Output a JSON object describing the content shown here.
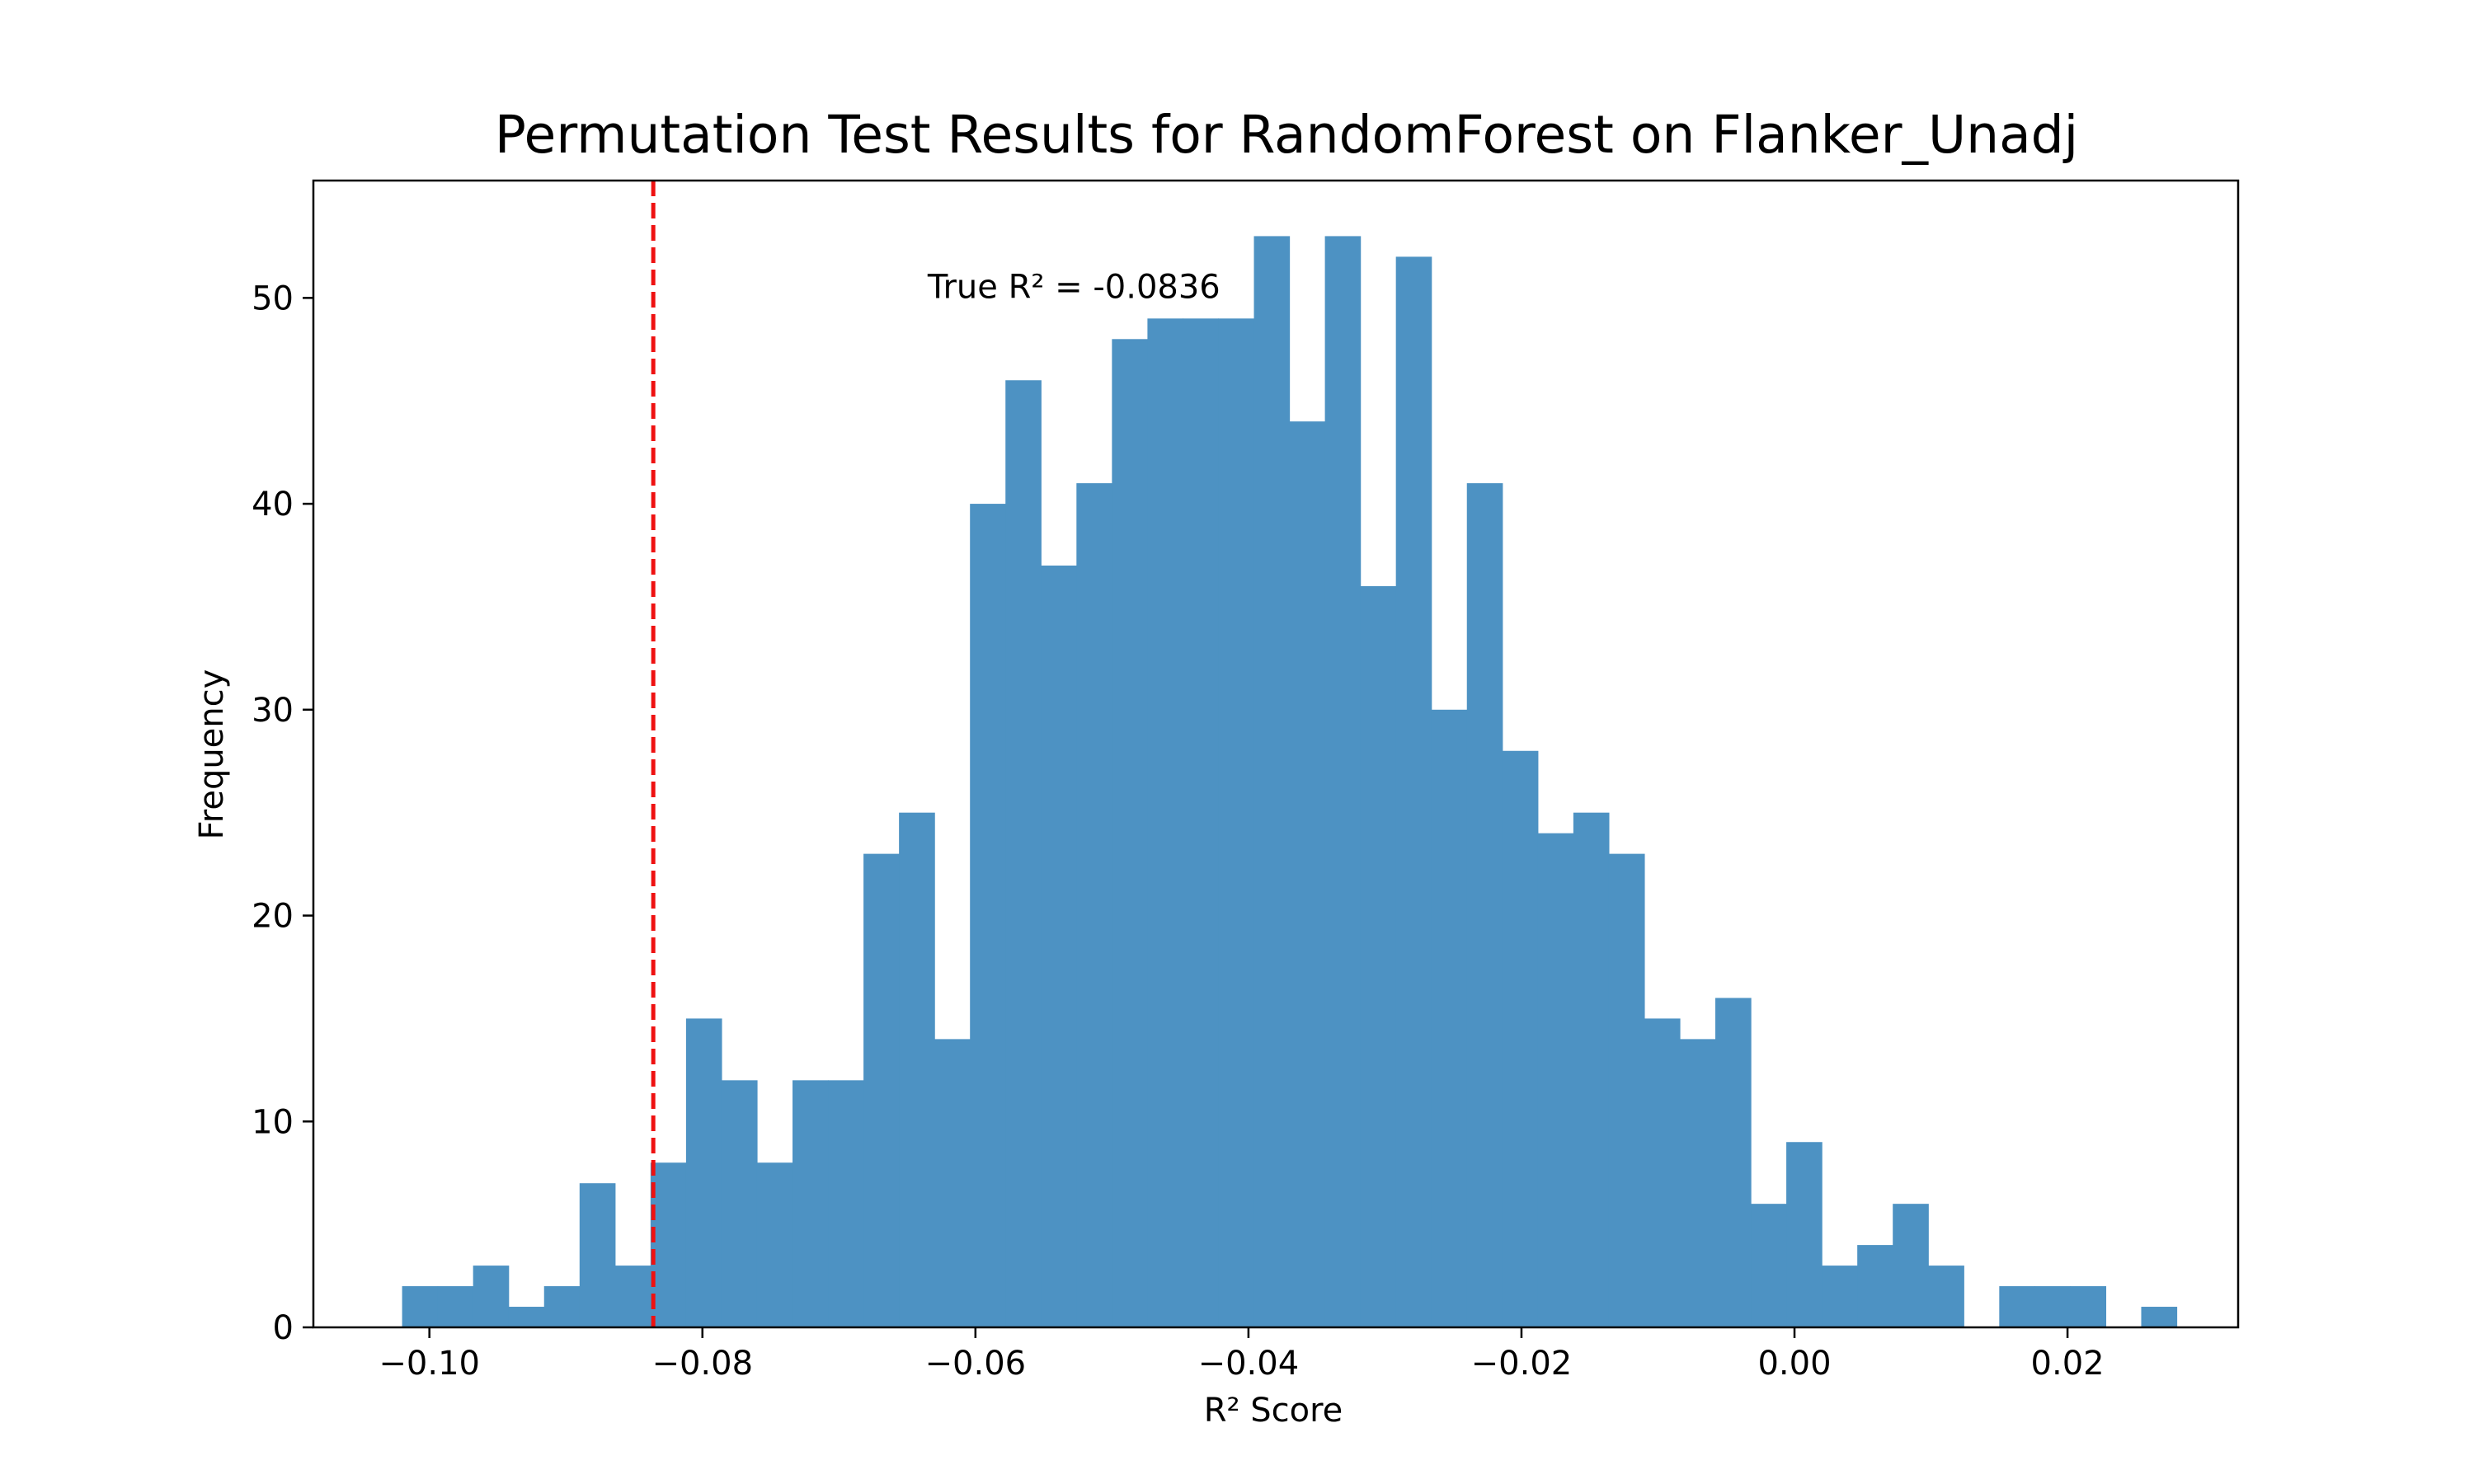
{
  "chart_data": {
    "type": "bar",
    "title": "Permutation Test Results for RandomForest on Flanker_Unadj",
    "xlabel": "R² Score",
    "ylabel": "Frequency",
    "xlim": [
      -0.1085,
      0.0325
    ],
    "ylim": [
      0,
      55.7
    ],
    "xticks": [
      -0.1,
      -0.08,
      -0.06,
      -0.04,
      -0.02,
      0.0,
      0.02
    ],
    "xtick_labels": [
      "−0.10",
      "−0.08",
      "−0.06",
      "−0.04",
      "−0.02",
      "0.00",
      "0.02"
    ],
    "yticks": [
      0,
      10,
      20,
      30,
      40,
      50
    ],
    "ytick_labels": [
      "0",
      "10",
      "20",
      "30",
      "40",
      "50"
    ],
    "bin_start": -0.102,
    "bin_width": 0.0026,
    "counts": [
      2,
      2,
      3,
      1,
      2,
      7,
      3,
      8,
      15,
      12,
      8,
      12,
      12,
      23,
      25,
      14,
      40,
      46,
      37,
      41,
      48,
      49,
      49,
      49,
      53,
      44,
      53,
      36,
      52,
      30,
      41,
      28,
      24,
      25,
      23,
      15,
      14,
      16,
      6,
      9,
      3,
      4,
      6,
      3,
      0,
      2,
      2,
      2,
      0,
      1
    ],
    "bar_color": "#4d92c3",
    "true_r2": -0.0836,
    "reference_line": {
      "x": -0.0836,
      "color": "#ee1111",
      "style": "dashed"
    },
    "annotation": "True R² = -0.0836",
    "annotation_anchor": {
      "x": -0.0635,
      "y": 50.0
    },
    "grid": false
  }
}
